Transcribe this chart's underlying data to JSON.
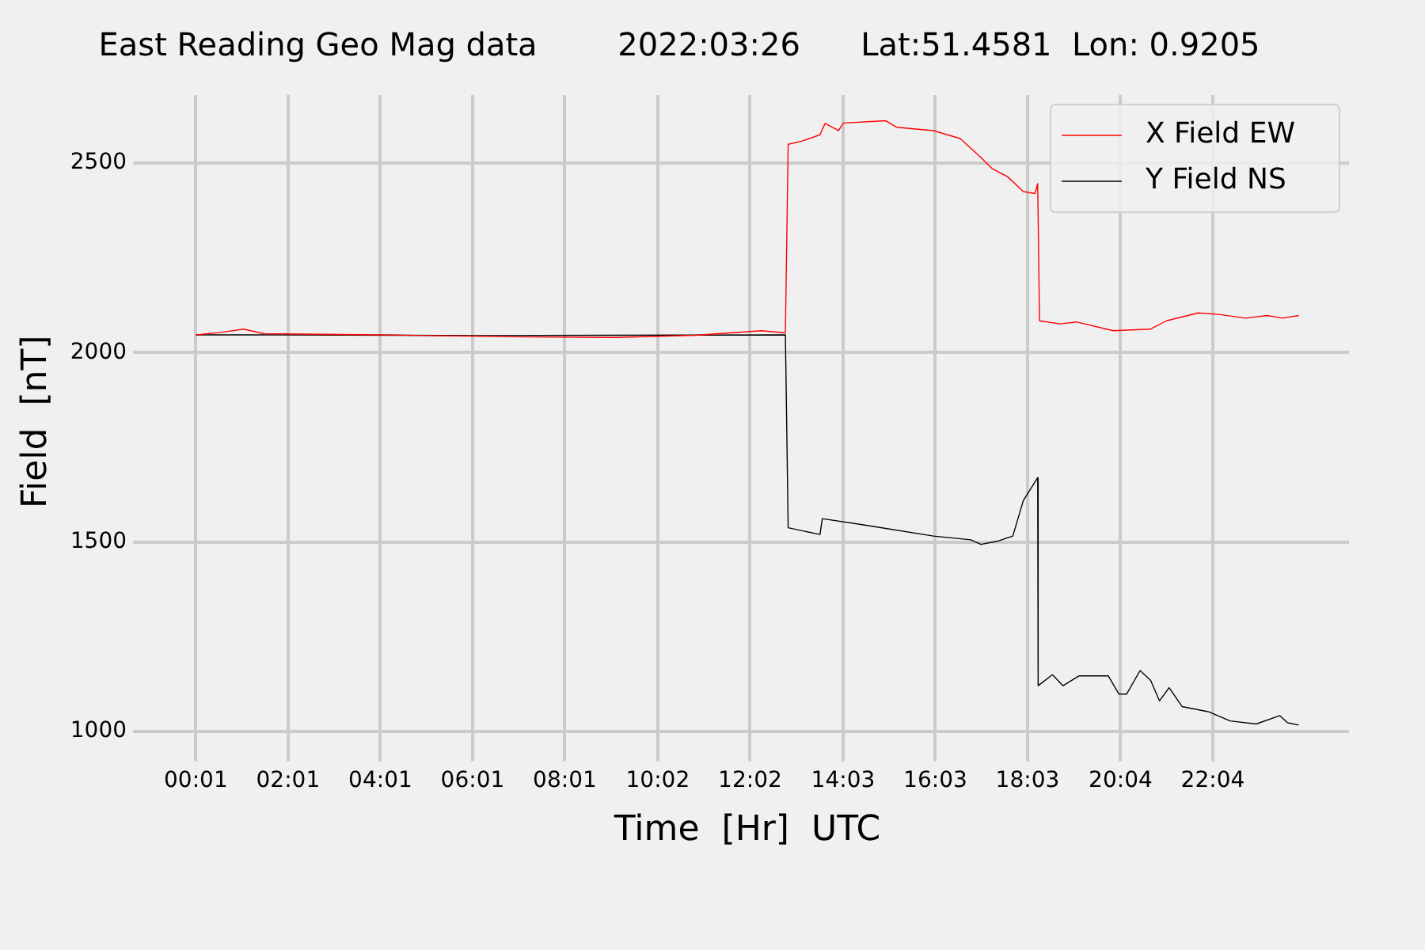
{
  "chart_data": {
    "type": "line",
    "title": "East Reading Geo Mag data        2022:03:26      Lat:51.4581  Lon: 0.9205",
    "xlabel": "Time  [Hr]  UTC",
    "ylabel": "Field  [nT]",
    "xlim": [
      -1.07,
      25.02
    ],
    "ylim": [
      955,
      2680
    ],
    "xticks": [
      {
        "value": 0.017,
        "label": "00:01"
      },
      {
        "value": 2.017,
        "label": "02:01"
      },
      {
        "value": 4.017,
        "label": "04:01"
      },
      {
        "value": 6.017,
        "label": "06:01"
      },
      {
        "value": 8.017,
        "label": "08:01"
      },
      {
        "value": 10.033,
        "label": "10:02"
      },
      {
        "value": 12.033,
        "label": "12:02"
      },
      {
        "value": 14.05,
        "label": "14:03"
      },
      {
        "value": 16.05,
        "label": "16:03"
      },
      {
        "value": 18.05,
        "label": "18:03"
      },
      {
        "value": 20.067,
        "label": "20:04"
      },
      {
        "value": 22.067,
        "label": "22:04"
      }
    ],
    "yticks": [
      1000,
      1500,
      2000,
      2500
    ],
    "grid": true,
    "legend": "top right",
    "marker": "none",
    "line_style": "solid",
    "series": [
      {
        "name": "X Field EW",
        "color": "#ff0000",
        "x": [
          0.017,
          0.53,
          1.05,
          1.5,
          3.97,
          6.83,
          9.13,
          10.85,
          12.29,
          12.8,
          12.86,
          13.15,
          13.55,
          13.66,
          13.95,
          14.06,
          14.98,
          15.21,
          16.01,
          16.59,
          17.04,
          17.28,
          17.62,
          17.96,
          18.21,
          18.27,
          18.31,
          18.76,
          19.11,
          19.91,
          20.71,
          21.06,
          21.75,
          22.2,
          22.78,
          23.24,
          23.58,
          23.93
        ],
        "values": [
          2047,
          2053,
          2062,
          2050,
          2047,
          2042,
          2040,
          2046,
          2058,
          2052,
          2550,
          2558,
          2575,
          2605,
          2586,
          2606,
          2612,
          2595,
          2586,
          2565,
          2515,
          2486,
          2464,
          2425,
          2420,
          2446,
          2084,
          2076,
          2081,
          2058,
          2062,
          2084,
          2105,
          2101,
          2091,
          2098,
          2091,
          2098
        ]
      },
      {
        "name": "Y Field NS",
        "color": "#000000",
        "x": [
          0.017,
          2.0,
          6.0,
          12.8,
          12.86,
          13.55,
          13.6,
          14.52,
          16.01,
          16.82,
          17.04,
          17.39,
          17.73,
          17.96,
          18.27,
          18.28,
          18.59,
          18.82,
          19.17,
          19.8,
          20.03,
          20.2,
          20.49,
          20.72,
          20.91,
          21.12,
          21.4,
          21.98,
          22.44,
          23.01,
          23.52,
          23.69,
          23.93
        ],
        "values": [
          2047,
          2047,
          2045,
          2047,
          1538,
          1520,
          1562,
          1545,
          1516,
          1506,
          1494,
          1502,
          1516,
          1610,
          1670,
          1121,
          1150,
          1121,
          1147,
          1147,
          1099,
          1099,
          1161,
          1135,
          1081,
          1116,
          1066,
          1052,
          1028,
          1020,
          1042,
          1023,
          1017
        ]
      }
    ]
  }
}
